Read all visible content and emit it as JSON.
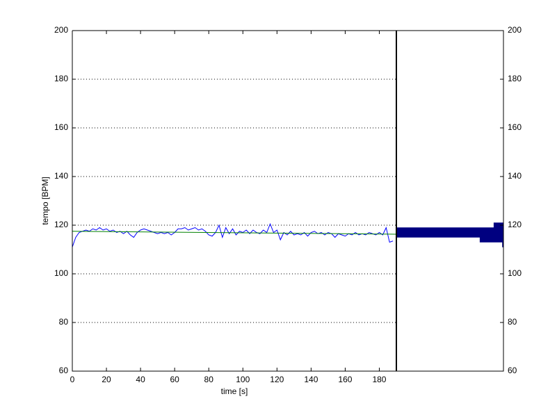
{
  "chart_data": [
    {
      "type": "line",
      "xlabel": "time [s]",
      "ylabel": "tempo [BPM]",
      "xlim": [
        0,
        190
      ],
      "ylim": [
        60,
        200
      ],
      "xticks": [
        0,
        20,
        40,
        60,
        80,
        100,
        120,
        140,
        160,
        180
      ],
      "yticks": [
        60,
        80,
        100,
        120,
        140,
        160,
        180,
        200
      ],
      "grid": "y-dotted",
      "series": [
        {
          "color": "#0000ff",
          "x": [
            0,
            2,
            4,
            6,
            8,
            10,
            12,
            14,
            16,
            18,
            20,
            22,
            24,
            26,
            28,
            30,
            32,
            34,
            36,
            38,
            40,
            42,
            44,
            46,
            48,
            50,
            52,
            54,
            56,
            58,
            60,
            62,
            64,
            66,
            68,
            70,
            72,
            74,
            76,
            78,
            80,
            82,
            84,
            86,
            88,
            90,
            92,
            94,
            96,
            98,
            100,
            102,
            104,
            106,
            108,
            110,
            112,
            114,
            116,
            118,
            120,
            122,
            124,
            126,
            128,
            130,
            132,
            134,
            136,
            138,
            140,
            142,
            144,
            146,
            148,
            150,
            152,
            154,
            156,
            158,
            160,
            162,
            164,
            166,
            168,
            170,
            172,
            174,
            176,
            178,
            180,
            182,
            184,
            186,
            188
          ],
          "values": [
            111,
            115,
            117,
            117.5,
            118,
            117.5,
            118.5,
            118,
            119,
            118,
            118.5,
            117.5,
            118,
            117,
            117.5,
            116.5,
            117.5,
            116,
            115,
            117,
            118,
            118.5,
            118,
            117.5,
            117,
            116.5,
            117,
            116.5,
            117,
            116,
            117,
            118.5,
            118.5,
            119,
            118,
            118.5,
            119,
            118,
            118.5,
            117.5,
            116,
            115.5,
            117,
            120,
            115,
            119,
            116.5,
            118.5,
            116,
            117.5,
            117,
            118,
            116.5,
            118,
            117,
            116.5,
            118,
            117,
            120.5,
            117,
            118,
            114,
            117,
            116,
            117.5,
            116,
            116.5,
            116,
            117,
            115.5,
            117,
            117.5,
            116.5,
            117,
            116,
            117,
            116.5,
            115,
            116.5,
            116,
            115.5,
            116.5,
            116,
            117,
            116,
            116.5,
            116,
            117,
            116.5,
            116,
            117,
            116,
            119,
            113,
            113.5
          ]
        },
        {
          "color": "#008000",
          "x": [
            0,
            190
          ],
          "values": [
            117.5,
            116.3
          ]
        }
      ]
    },
    {
      "type": "histogram",
      "orientation": "horizontal",
      "xdir": "reverse",
      "bins": [
        111,
        113,
        115,
        117,
        119,
        121
      ],
      "counts": [
        1,
        22,
        100,
        100,
        9
      ],
      "color": "#000080",
      "xlim": [
        0,
        100
      ],
      "ylim": [
        60,
        200
      ],
      "yticks": [
        60,
        80,
        100,
        120,
        140,
        160,
        180,
        200
      ]
    }
  ]
}
